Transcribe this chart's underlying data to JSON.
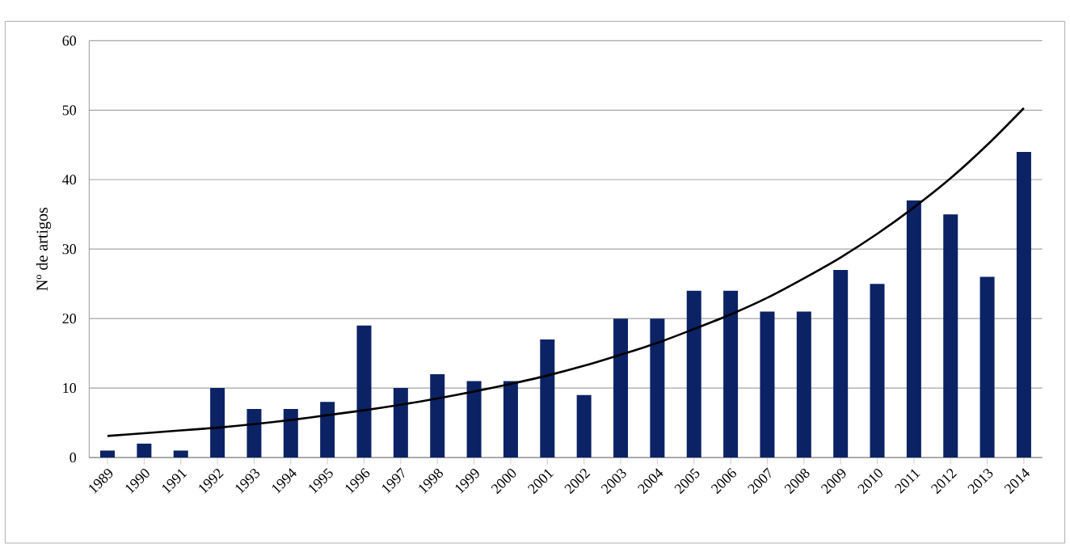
{
  "chart_data": {
    "type": "bar",
    "ylabel": "Nº de artigos",
    "categories": [
      "1989",
      "1990",
      "1991",
      "1992",
      "1993",
      "1994",
      "1995",
      "1996",
      "1997",
      "1998",
      "1999",
      "2000",
      "2001",
      "2002",
      "2003",
      "2004",
      "2005",
      "2006",
      "2007",
      "2008",
      "2009",
      "2010",
      "2011",
      "2012",
      "2013",
      "2014"
    ],
    "series": [
      {
        "color": "#0b2265",
        "values": [
          1,
          2,
          1,
          10,
          7,
          7,
          8,
          19,
          10,
          12,
          11,
          11,
          17,
          9,
          20,
          20,
          24,
          24,
          21,
          21,
          27,
          25,
          37,
          35,
          26,
          44
        ]
      },
      {
        "type": "line",
        "color": "#000000",
        "values": [
          3.1,
          3.5,
          3.9,
          4.3,
          4.8,
          5.4,
          6.1,
          6.8,
          7.6,
          8.5,
          9.5,
          10.6,
          11.8,
          13.2,
          14.8,
          16.5,
          18.5,
          20.6,
          23.0,
          25.8,
          28.8,
          32.2,
          36.0,
          40.2,
          45.0,
          50.3
        ]
      }
    ],
    "ylim": [
      0,
      60
    ],
    "yticks": [
      0,
      10,
      20,
      30,
      40,
      50,
      60
    ],
    "grid": "y"
  }
}
